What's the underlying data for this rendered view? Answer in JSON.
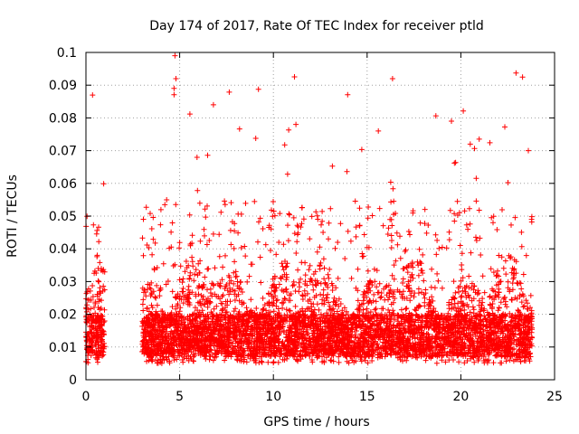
{
  "chart_data": {
    "type": "scatter",
    "title": "Day 174 of 2017, Rate Of TEC Index for receiver ptld",
    "xlabel": "GPS time / hours",
    "ylabel": "ROTI / TECUs",
    "xlim": [
      0,
      25
    ],
    "ylim": [
      0,
      0.1
    ],
    "x_ticks": [
      0,
      5,
      10,
      15,
      20,
      25
    ],
    "x_tick_labels": [
      "0",
      "5",
      "10",
      "15",
      "20",
      "25"
    ],
    "y_ticks": [
      0,
      0.01,
      0.02,
      0.03,
      0.04,
      0.05,
      0.06,
      0.07,
      0.08,
      0.09,
      0.1
    ],
    "y_tick_labels": [
      "0",
      "0.01",
      "0.02",
      "0.03",
      "0.04",
      "0.05",
      "0.06",
      "0.07",
      "0.08",
      "0.09",
      "0.1"
    ],
    "grid": true,
    "marker": "+",
    "color": "#ff0000",
    "observed_segments": [
      {
        "start_hour": 0.0,
        "end_hour": 1.0,
        "typical_max": 0.035,
        "peak_max": 0.088
      },
      {
        "start_hour": 3.0,
        "end_hour": 23.8,
        "typical_max": 0.04,
        "peak_max": 0.099
      }
    ],
    "notable_points": [
      {
        "x": 0.35,
        "y": 0.087
      },
      {
        "x": 4.75,
        "y": 0.099
      },
      {
        "x": 4.8,
        "y": 0.092
      },
      {
        "x": 4.7,
        "y": 0.089
      },
      {
        "x": 6.8,
        "y": 0.084
      },
      {
        "x": 11.2,
        "y": 0.078
      },
      {
        "x": 15.6,
        "y": 0.076
      },
      {
        "x": 19.5,
        "y": 0.079
      },
      {
        "x": 20.5,
        "y": 0.072
      },
      {
        "x": 23.6,
        "y": 0.07
      }
    ]
  }
}
